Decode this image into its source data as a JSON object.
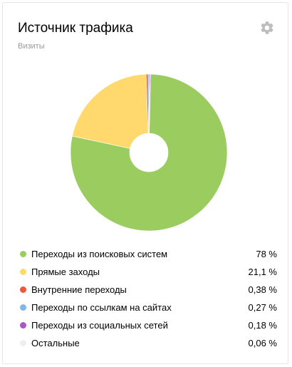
{
  "widget": {
    "title": "Источник трафика",
    "subtitle": "Визиты",
    "settings_icon": "gear-icon"
  },
  "colors": {
    "search": "#9acc5f",
    "direct": "#ffd86e",
    "internal": "#f0563b",
    "links": "#7fb7e8",
    "social": "#a857c9",
    "other": "#eeeeee",
    "gear": "#bdbdbd",
    "title": "#000000",
    "subtitle": "#999999"
  },
  "legend": [
    {
      "label": "Переходы из поисковых систем",
      "value": "78 %",
      "color": "#9acc5f"
    },
    {
      "label": "Прямые заходы",
      "value": "21,1 %",
      "color": "#ffd86e"
    },
    {
      "label": "Внутренние переходы",
      "value": "0,38 %",
      "color": "#f0563b"
    },
    {
      "label": "Переходы по ссылкам на сайтах",
      "value": "0,27 %",
      "color": "#7fb7e8"
    },
    {
      "label": "Переходы из социальных сетей",
      "value": "0,18 %",
      "color": "#a857c9"
    },
    {
      "label": "Остальные",
      "value": "0,06 %",
      "color": "#eeeeee"
    }
  ],
  "chart_data": {
    "type": "pie",
    "categories": [
      "Переходы из поисковых систем",
      "Прямые заходы",
      "Внутренние переходы",
      "Переходы по ссылкам на сайтах",
      "Переходы из социальных сетей",
      "Остальные"
    ],
    "values": [
      78,
      21.1,
      0.38,
      0.27,
      0.18,
      0.06
    ],
    "colors": [
      "#9acc5f",
      "#ffd86e",
      "#f0563b",
      "#7fb7e8",
      "#a857c9",
      "#eeeeee"
    ],
    "donut": true
  }
}
